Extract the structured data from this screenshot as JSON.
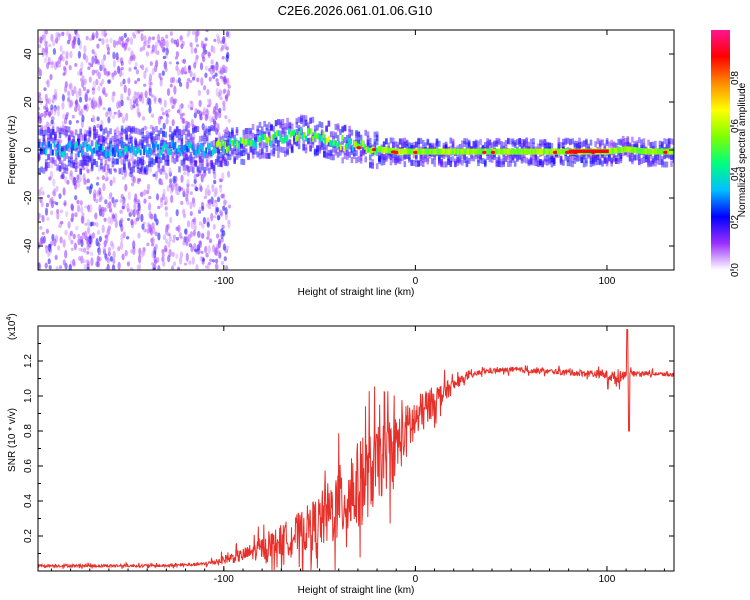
{
  "title": "C2E6.2026.061.01.06.G10",
  "chart_data": [
    {
      "type": "heatmap",
      "title": "C2E6.2026.061.01.06.G10",
      "xlabel": "Height of straight line (km)",
      "ylabel": "Frequency (Hz)",
      "xlim": [
        -197,
        135
      ],
      "ylim": [
        -50,
        50
      ],
      "x_ticks": [
        "-100",
        "0",
        "100"
      ],
      "y_ticks": [
        "-40",
        "-20",
        "0",
        "20",
        "40"
      ],
      "colorbar": {
        "label": "Normalized spectral amplitude",
        "range": [
          0,
          1
        ],
        "ticks": [
          "0.0",
          "0.2",
          "0.4",
          "0.6",
          "0.8"
        ],
        "colors": [
          "#ffffff",
          "#9b30ff",
          "#0000ff",
          "#00bfff",
          "#00ff7f",
          "#7fff00",
          "#ffff00",
          "#ff8c00",
          "#ff0000",
          "#ff1493"
        ]
      },
      "ridge": {
        "x": [
          -197,
          -160,
          -130,
          -110,
          -90,
          -80,
          -70,
          -60,
          -50,
          -40,
          -30,
          -20,
          -10,
          0,
          20,
          40,
          60,
          80,
          100,
          110,
          120,
          135
        ],
        "freq_hz": [
          0,
          0,
          0,
          0,
          2,
          4,
          5,
          7,
          5,
          3,
          1,
          0,
          -1,
          -1,
          -1,
          -1,
          -1,
          -1,
          -1,
          0,
          -1,
          -1
        ]
      },
      "noisy_below_x": -105
    },
    {
      "type": "line",
      "xlabel": "Height of straight line (km)",
      "ylabel": "SNR (10 * v/v)",
      "y_scale_label": "(x10",
      "y_scale_exp": "4",
      "y_scale_close": ")",
      "xlim": [
        -197,
        135
      ],
      "ylim": [
        0,
        1.4
      ],
      "x_ticks": [
        "-100",
        "0",
        "100"
      ],
      "y_ticks": [
        "0.2",
        "0.4",
        "0.6",
        "0.8",
        "1.0",
        "1.2"
      ],
      "series": [
        {
          "name": "SNR",
          "color": "#e8302a",
          "envelope_x": [
            -197,
            -160,
            -130,
            -110,
            -90,
            -75,
            -60,
            -50,
            -40,
            -30,
            -20,
            -10,
            0,
            10,
            20,
            25,
            35,
            50,
            70,
            90,
            100,
            105,
            110,
            115,
            120,
            135
          ],
          "envelope_y": [
            0.03,
            0.03,
            0.03,
            0.04,
            0.09,
            0.15,
            0.22,
            0.28,
            0.38,
            0.48,
            0.6,
            0.72,
            0.86,
            0.98,
            1.06,
            1.1,
            1.14,
            1.15,
            1.14,
            1.13,
            1.12,
            1.1,
            1.13,
            1.13,
            1.13,
            1.12
          ],
          "noise_amplitude": [
            0.008,
            0.008,
            0.008,
            0.01,
            0.04,
            0.08,
            0.12,
            0.16,
            0.22,
            0.26,
            0.22,
            0.18,
            0.14,
            0.08,
            0.04,
            0.02,
            0.015,
            0.015,
            0.015,
            0.02,
            0.025,
            0.04,
            0.02,
            0.012,
            0.012,
            0.012
          ],
          "spikes": [
            {
              "x": 110.5,
              "y": 1.38
            },
            {
              "x": 111.5,
              "y": 0.8
            },
            {
              "x": 100.5,
              "y": 1.04
            }
          ]
        }
      ]
    }
  ]
}
